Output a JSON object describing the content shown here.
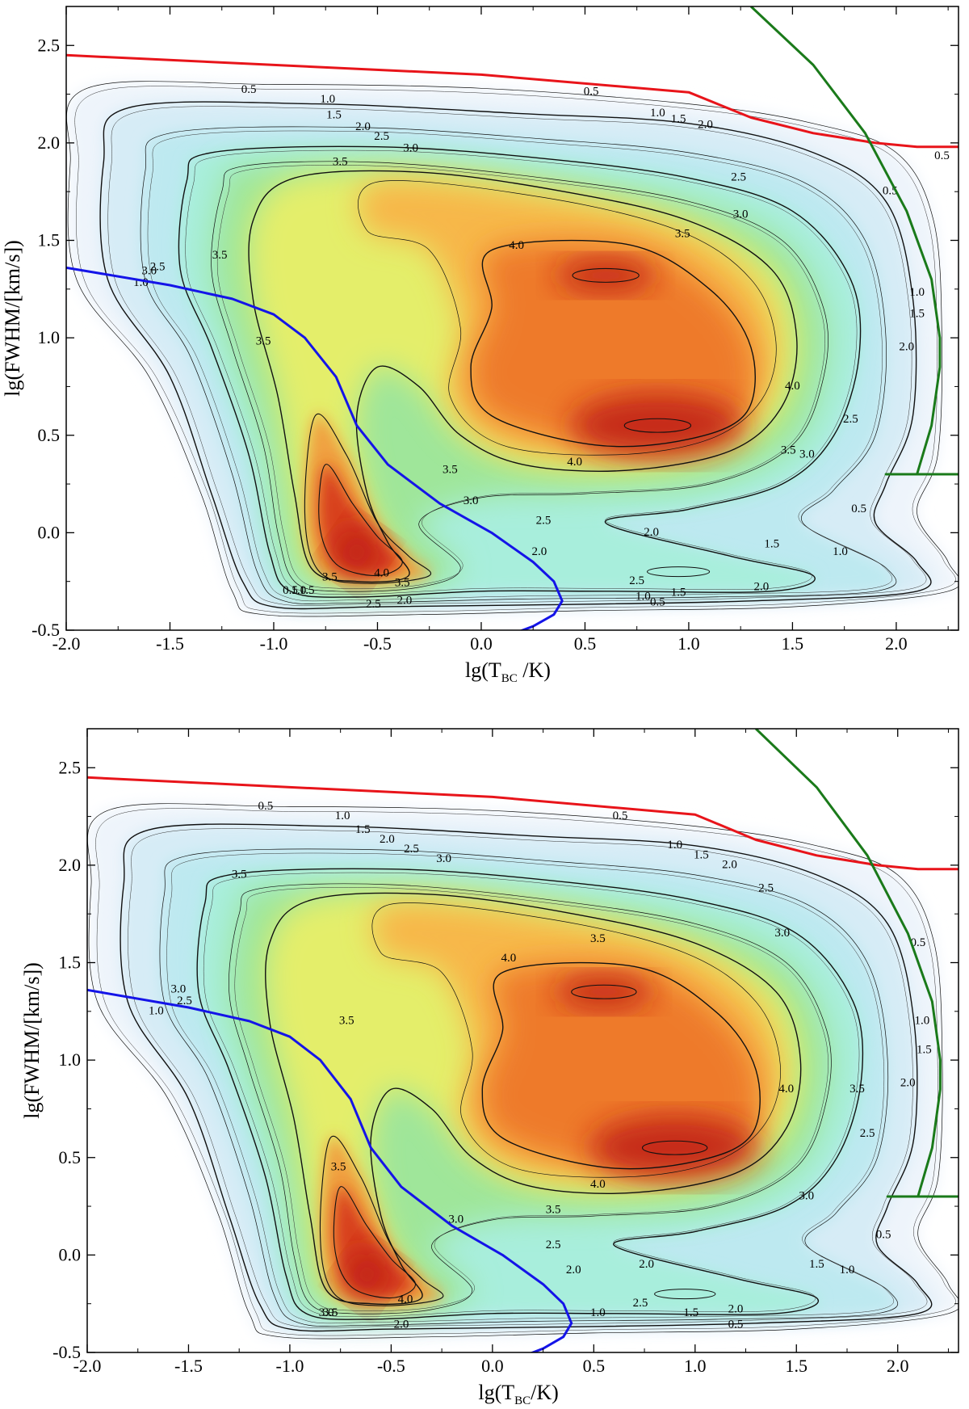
{
  "chart_data": [
    {
      "type": "contour",
      "panel": "top",
      "xlabel": "lg(T",
      "xlabel_sub": "BC",
      "xlabel_tail": " /K)",
      "ylabel": "lg(FWHM/[km/s])",
      "xlim": [
        -2.0,
        2.3
      ],
      "ylim": [
        -0.5,
        2.7
      ],
      "xticks": [
        -2.0,
        -1.5,
        -1.0,
        -0.5,
        0.0,
        0.5,
        1.0,
        1.5,
        2.0
      ],
      "xtick_labels": [
        "-2.0",
        "-1.5",
        "-1.0",
        "-0.5",
        "0.0",
        "0.5",
        "1.0",
        "1.5",
        "2.0"
      ],
      "yticks": [
        -0.5,
        0.0,
        0.5,
        1.0,
        1.5,
        2.0,
        2.5
      ],
      "ytick_labels": [
        "-0.5",
        "0.0",
        "0.5",
        "1.0",
        "1.5",
        "2.0",
        "2.5"
      ],
      "contour_levels": [
        "0.5",
        "1.0",
        "1.5",
        "2.0",
        "2.5",
        "3.0",
        "3.5",
        "4.0"
      ],
      "density_peaks": [
        {
          "x": 0.85,
          "y": 0.55,
          "level": 4.4
        },
        {
          "x": 0.6,
          "y": 1.32,
          "level": 4.3
        },
        {
          "x": -0.6,
          "y": -0.1,
          "level": 4.3
        }
      ],
      "contour_label_positions": [
        {
          "text": "0.5",
          "x": -1.12,
          "y": 2.27
        },
        {
          "text": "1.0",
          "x": -0.74,
          "y": 2.22
        },
        {
          "text": "1.5",
          "x": -0.71,
          "y": 2.14
        },
        {
          "text": "2.0",
          "x": -0.57,
          "y": 2.08
        },
        {
          "text": "2.5",
          "x": -0.48,
          "y": 2.03
        },
        {
          "text": "3.0",
          "x": -0.34,
          "y": 1.97
        },
        {
          "text": "3.5",
          "x": -0.68,
          "y": 1.9
        },
        {
          "text": "0.5",
          "x": 0.53,
          "y": 2.26
        },
        {
          "text": "1.0",
          "x": 0.85,
          "y": 2.15
        },
        {
          "text": "1.5",
          "x": 0.95,
          "y": 2.12
        },
        {
          "text": "2.0",
          "x": 1.08,
          "y": 2.09
        },
        {
          "text": "2.5",
          "x": 1.24,
          "y": 1.82
        },
        {
          "text": "3.0",
          "x": 1.25,
          "y": 1.63
        },
        {
          "text": "3.5",
          "x": 0.97,
          "y": 1.53
        },
        {
          "text": "4.0",
          "x": 0.17,
          "y": 1.47
        },
        {
          "text": "3.5",
          "x": -1.26,
          "y": 1.42
        },
        {
          "text": "3.5",
          "x": -1.05,
          "y": 0.98
        },
        {
          "text": "4.0",
          "x": 1.5,
          "y": 0.75
        },
        {
          "text": "4.0",
          "x": 0.45,
          "y": 0.36
        },
        {
          "text": "3.5",
          "x": -0.15,
          "y": 0.32
        },
        {
          "text": "3.5",
          "x": 1.48,
          "y": 0.42
        },
        {
          "text": "3.0",
          "x": 1.57,
          "y": 0.4
        },
        {
          "text": "2.5",
          "x": 1.78,
          "y": 0.58
        },
        {
          "text": "2.0",
          "x": 2.05,
          "y": 0.95
        },
        {
          "text": "1.5",
          "x": 2.1,
          "y": 1.12
        },
        {
          "text": "1.0",
          "x": 2.1,
          "y": 1.23
        },
        {
          "text": "0.5",
          "x": 1.97,
          "y": 1.75
        },
        {
          "text": "0.5",
          "x": 2.22,
          "y": 1.93
        },
        {
          "text": "3.0",
          "x": -0.05,
          "y": 0.16
        },
        {
          "text": "2.5",
          "x": 0.3,
          "y": 0.06
        },
        {
          "text": "2.0",
          "x": 0.28,
          "y": -0.1
        },
        {
          "text": "2.0",
          "x": 0.82,
          "y": 0.0
        },
        {
          "text": "1.5",
          "x": 1.4,
          "y": -0.06
        },
        {
          "text": "1.0",
          "x": 1.73,
          "y": -0.1
        },
        {
          "text": "0.5",
          "x": 1.82,
          "y": 0.12
        },
        {
          "text": "2.5",
          "x": 0.75,
          "y": -0.25
        },
        {
          "text": "1.5",
          "x": 0.95,
          "y": -0.31
        },
        {
          "text": "2.0",
          "x": 1.35,
          "y": -0.28
        },
        {
          "text": "1.0",
          "x": 0.78,
          "y": -0.33
        },
        {
          "text": "0.5",
          "x": 0.85,
          "y": -0.36
        },
        {
          "text": "4.0",
          "x": -0.48,
          "y": -0.21
        },
        {
          "text": "3.5",
          "x": -0.38,
          "y": -0.26
        },
        {
          "text": "2.5",
          "x": -0.52,
          "y": -0.37
        },
        {
          "text": "2.0",
          "x": -0.37,
          "y": -0.35
        },
        {
          "text": "3.5",
          "x": -0.73,
          "y": -0.23
        },
        {
          "text": "3.0",
          "x": -1.6,
          "y": 1.34
        },
        {
          "text": "2.5",
          "x": -1.56,
          "y": 1.36
        },
        {
          "text": "1.0",
          "x": -1.64,
          "y": 1.28
        },
        {
          "text": "0.5",
          "x": -0.92,
          "y": -0.3
        },
        {
          "text": "1.0",
          "x": -0.88,
          "y": -0.3
        },
        {
          "text": "1.5",
          "x": -0.84,
          "y": -0.3
        }
      ],
      "series": [
        {
          "name": "red boundary",
          "color": "#e8141a",
          "x": [
            -2.0,
            0.0,
            1.0,
            1.3,
            1.6,
            1.9,
            2.1,
            2.3
          ],
          "y": [
            2.45,
            2.35,
            2.26,
            2.13,
            2.05,
            2.0,
            1.98,
            1.98
          ]
        },
        {
          "name": "blue curve",
          "color": "#1414e8",
          "x": [
            -2.0,
            -1.5,
            -1.2,
            -1.0,
            -0.85,
            -0.7,
            -0.6,
            -0.45,
            -0.2,
            0.05,
            0.25,
            0.35,
            0.39,
            0.35,
            0.25,
            0.15
          ],
          "y": [
            1.36,
            1.27,
            1.2,
            1.12,
            1.0,
            0.8,
            0.55,
            0.35,
            0.15,
            0.0,
            -0.15,
            -0.25,
            -0.35,
            -0.42,
            -0.48,
            -0.52
          ]
        },
        {
          "name": "green boundary",
          "color": "#1a7a1a",
          "x": [
            1.3,
            1.6,
            1.85,
            2.05,
            2.17,
            2.21,
            2.21,
            2.17,
            2.1,
            1.95,
            1.95,
            2.3
          ],
          "y": [
            2.7,
            2.4,
            2.05,
            1.65,
            1.3,
            1.0,
            0.85,
            0.55,
            0.3,
            0.3,
            0.3,
            0.3
          ]
        }
      ]
    },
    {
      "type": "contour",
      "panel": "bottom",
      "xlabel": "lg(T",
      "xlabel_sub": "BC",
      "xlabel_tail": "/K)",
      "ylabel": "lg(FWHM/[km/s])",
      "xlim": [
        -2.0,
        2.3
      ],
      "ylim": [
        -0.5,
        2.7
      ],
      "xticks": [
        -2.0,
        -1.5,
        -1.0,
        -0.5,
        0.0,
        0.5,
        1.0,
        1.5,
        2.0
      ],
      "xtick_labels": [
        "-2.0",
        "-1.5",
        "-1.0",
        "-0.5",
        "0.0",
        "0.5",
        "1.0",
        "1.5",
        "2.0"
      ],
      "yticks": [
        -0.5,
        0.0,
        0.5,
        1.0,
        1.5,
        2.0,
        2.5
      ],
      "ytick_labels": [
        "-0.5",
        "0.0",
        "0.5",
        "1.0",
        "1.5",
        "2.0",
        "2.5"
      ],
      "contour_levels": [
        "0.5",
        "1.0",
        "1.5",
        "2.0",
        "2.5",
        "3.0",
        "3.5",
        "4.0"
      ],
      "density_peaks": [
        {
          "x": 0.9,
          "y": 0.55,
          "level": 4.4
        },
        {
          "x": 0.55,
          "y": 1.35,
          "level": 4.3
        },
        {
          "x": -0.62,
          "y": -0.1,
          "level": 4.3
        }
      ],
      "contour_label_positions": [
        {
          "text": "0.5",
          "x": -1.12,
          "y": 2.3
        },
        {
          "text": "1.0",
          "x": -0.74,
          "y": 2.25
        },
        {
          "text": "1.5",
          "x": -0.64,
          "y": 2.18
        },
        {
          "text": "2.0",
          "x": -0.52,
          "y": 2.13
        },
        {
          "text": "2.5",
          "x": -0.4,
          "y": 2.08
        },
        {
          "text": "3.0",
          "x": -0.24,
          "y": 2.03
        },
        {
          "text": "3.5",
          "x": -1.25,
          "y": 1.95
        },
        {
          "text": "0.5",
          "x": 0.63,
          "y": 2.25
        },
        {
          "text": "1.0",
          "x": 0.9,
          "y": 2.1
        },
        {
          "text": "1.5",
          "x": 1.03,
          "y": 2.05
        },
        {
          "text": "2.0",
          "x": 1.17,
          "y": 2.0
        },
        {
          "text": "2.5",
          "x": 1.35,
          "y": 1.88
        },
        {
          "text": "3.0",
          "x": 1.43,
          "y": 1.65
        },
        {
          "text": "3.5",
          "x": 0.52,
          "y": 1.62
        },
        {
          "text": "4.0",
          "x": 0.08,
          "y": 1.52
        },
        {
          "text": "3.5",
          "x": -0.72,
          "y": 1.2
        },
        {
          "text": "4.0",
          "x": 1.45,
          "y": 0.85
        },
        {
          "text": "4.0",
          "x": 0.52,
          "y": 0.36
        },
        {
          "text": "3.5",
          "x": 0.3,
          "y": 0.23
        },
        {
          "text": "3.5",
          "x": 1.8,
          "y": 0.85
        },
        {
          "text": "2.5",
          "x": 1.85,
          "y": 0.62
        },
        {
          "text": "2.0",
          "x": 2.05,
          "y": 0.88
        },
        {
          "text": "1.5",
          "x": 2.13,
          "y": 1.05
        },
        {
          "text": "1.0",
          "x": 2.12,
          "y": 1.2
        },
        {
          "text": "0.5",
          "x": 2.1,
          "y": 1.6
        },
        {
          "text": "3.0",
          "x": 1.55,
          "y": 0.3
        },
        {
          "text": "3.0",
          "x": -0.18,
          "y": 0.18
        },
        {
          "text": "2.5",
          "x": 0.3,
          "y": 0.05
        },
        {
          "text": "2.0",
          "x": 0.4,
          "y": -0.08
        },
        {
          "text": "2.0",
          "x": 0.76,
          "y": -0.05
        },
        {
          "text": "1.5",
          "x": 1.6,
          "y": -0.05
        },
        {
          "text": "1.0",
          "x": 1.75,
          "y": -0.08
        },
        {
          "text": "0.5",
          "x": 1.93,
          "y": 0.1
        },
        {
          "text": "2.5",
          "x": 0.73,
          "y": -0.25
        },
        {
          "text": "1.5",
          "x": 0.98,
          "y": -0.3
        },
        {
          "text": "2.0",
          "x": 1.2,
          "y": -0.28
        },
        {
          "text": "1.0",
          "x": 0.52,
          "y": -0.3
        },
        {
          "text": "0.5",
          "x": 1.2,
          "y": -0.36
        },
        {
          "text": "4.0",
          "x": -0.43,
          "y": -0.23
        },
        {
          "text": "3.5",
          "x": -0.76,
          "y": 0.45
        },
        {
          "text": "2.0",
          "x": -0.45,
          "y": -0.36
        },
        {
          "text": "3.0",
          "x": -1.55,
          "y": 1.36
        },
        {
          "text": "2.5",
          "x": -1.52,
          "y": 1.3
        },
        {
          "text": "1.0",
          "x": -1.66,
          "y": 1.25
        },
        {
          "text": "3.0",
          "x": -0.82,
          "y": -0.3
        },
        {
          "text": "3.5",
          "x": -0.8,
          "y": -0.3
        }
      ],
      "series": [
        {
          "name": "red boundary",
          "color": "#e8141a",
          "x": [
            -2.0,
            0.0,
            1.0,
            1.3,
            1.6,
            1.9,
            2.1,
            2.3
          ],
          "y": [
            2.45,
            2.35,
            2.26,
            2.13,
            2.05,
            2.0,
            1.98,
            1.98
          ]
        },
        {
          "name": "blue curve",
          "color": "#1414e8",
          "x": [
            -2.0,
            -1.5,
            -1.2,
            -1.0,
            -0.85,
            -0.7,
            -0.6,
            -0.45,
            -0.2,
            0.05,
            0.25,
            0.35,
            0.39,
            0.35,
            0.25,
            0.15
          ],
          "y": [
            1.36,
            1.27,
            1.2,
            1.12,
            1.0,
            0.8,
            0.55,
            0.35,
            0.15,
            0.0,
            -0.15,
            -0.25,
            -0.35,
            -0.42,
            -0.48,
            -0.52
          ]
        },
        {
          "name": "green boundary",
          "color": "#1a7a1a",
          "x": [
            1.3,
            1.6,
            1.85,
            2.05,
            2.17,
            2.21,
            2.21,
            2.17,
            2.1,
            1.95,
            1.95,
            2.3
          ],
          "y": [
            2.7,
            2.4,
            2.05,
            1.65,
            1.3,
            1.0,
            0.85,
            0.55,
            0.3,
            0.3,
            0.3,
            0.3
          ]
        }
      ]
    }
  ]
}
